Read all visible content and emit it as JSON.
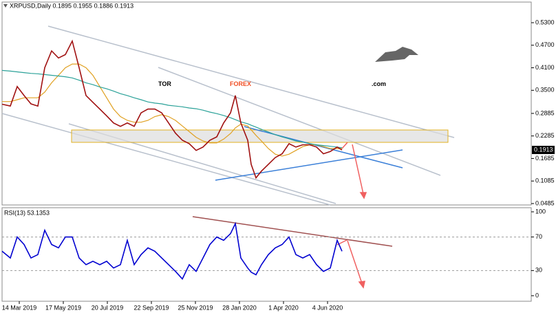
{
  "header": "XRPUSD,Daily  0.1895 0.1955 0.1886 0.1913",
  "logo": {
    "part1": "TOR",
    "part2": "FOREX",
    "part3": ".com"
  },
  "chart_data": [
    {
      "type": "line",
      "x": [
        "2019-02-17",
        "2019-03-01",
        "2019-03-11",
        "2019-03-21",
        "2019-03-31",
        "2019-04-10",
        "2019-04-20",
        "2019-04-30",
        "2019-05-10",
        "2019-05-20",
        "2019-05-30",
        "2019-06-09",
        "2019-06-19",
        "2019-06-29",
        "2019-07-09",
        "2019-07-19",
        "2019-07-29",
        "2019-08-08",
        "2019-08-18",
        "2019-08-28",
        "2019-09-07",
        "2019-09-17",
        "2019-09-27",
        "2019-10-07",
        "2019-10-17",
        "2019-10-27",
        "2019-11-06",
        "2019-11-16",
        "2019-11-26",
        "2019-12-06",
        "2019-12-16",
        "2019-12-26",
        "2020-01-05",
        "2020-01-15",
        "2020-01-22",
        "2020-01-30",
        "2020-02-09",
        "2020-02-14",
        "2020-02-21",
        "2020-02-29",
        "2020-03-10",
        "2020-03-20",
        "2020-03-30",
        "2020-04-09",
        "2020-04-19",
        "2020-04-29",
        "2020-05-09",
        "2020-05-19",
        "2020-05-29",
        "2020-06-08",
        "2020-06-18",
        "2020-06-25"
      ],
      "series": [
        {
          "color": "#a01010",
          "values": [
            0.313,
            0.308,
            0.36,
            0.336,
            0.314,
            0.308,
            0.41,
            0.455,
            0.436,
            0.445,
            0.481,
            0.41,
            0.336,
            0.318,
            0.3,
            0.282,
            0.263,
            0.254,
            0.263,
            0.254,
            0.29,
            0.3,
            0.3,
            0.29,
            0.263,
            0.236,
            0.217,
            0.208,
            0.19,
            0.199,
            0.217,
            0.226,
            0.263,
            0.29,
            0.336,
            0.263,
            0.217,
            0.153,
            0.117,
            0.135,
            0.153,
            0.171,
            0.181,
            0.208,
            0.199,
            0.205,
            0.205,
            0.199,
            0.181,
            0.187,
            0.199,
            0.191
          ]
        },
        {
          "color": "#2aa198",
          "values": [
            0.403,
            0.401,
            0.399,
            0.397,
            0.395,
            0.394,
            0.392,
            0.39,
            0.388,
            0.386,
            0.383,
            0.377,
            0.37,
            0.365,
            0.359,
            0.354,
            0.348,
            0.341,
            0.336,
            0.33,
            0.325,
            0.319,
            0.316,
            0.314,
            0.31,
            0.308,
            0.306,
            0.303,
            0.301,
            0.297,
            0.292,
            0.288,
            0.283,
            0.277,
            0.272,
            0.266,
            0.261,
            0.257,
            0.252,
            0.246,
            0.239,
            0.232,
            0.226,
            0.221,
            0.215,
            0.212,
            0.208,
            0.205,
            0.203,
            0.201,
            0.199,
            0.197
          ]
        },
        {
          "color": "#e0a020",
          "values": [
            0.32,
            0.32,
            0.325,
            0.33,
            0.33,
            0.33,
            0.345,
            0.37,
            0.39,
            0.41,
            0.42,
            0.42,
            0.41,
            0.39,
            0.36,
            0.33,
            0.3,
            0.28,
            0.27,
            0.265,
            0.265,
            0.27,
            0.28,
            0.285,
            0.28,
            0.27,
            0.255,
            0.24,
            0.225,
            0.215,
            0.21,
            0.21,
            0.22,
            0.235,
            0.25,
            0.26,
            0.255,
            0.245,
            0.23,
            0.215,
            0.195,
            0.18,
            0.175,
            0.18,
            0.19,
            0.2,
            0.205,
            0.205,
            0.2,
            0.195,
            0.195,
            0.195
          ]
        }
      ],
      "last_price": 0.1913,
      "xlim": [
        "2019-02-17",
        "2021-03-27"
      ],
      "ylim": [
        0.0448,
        0.5849
      ],
      "yticks": [
        {
          "value": 0.53,
          "label": "0.5300"
        },
        {
          "value": 0.47,
          "label": "0.4700"
        },
        {
          "value": 0.41,
          "label": "0.4100"
        },
        {
          "value": 0.35,
          "label": "0.3500"
        },
        0.2885,
        0.2285,
        0.1685,
        0.1085,
        0.0485
      ]
    },
    {
      "type": "line",
      "title": "RSI(13) 53.1353",
      "x": [
        "2019-02-17",
        "2019-03-01",
        "2019-03-11",
        "2019-03-21",
        "2019-03-31",
        "2019-04-10",
        "2019-04-20",
        "2019-04-30",
        "2019-05-10",
        "2019-05-20",
        "2019-05-30",
        "2019-06-09",
        "2019-06-19",
        "2019-06-29",
        "2019-07-09",
        "2019-07-19",
        "2019-07-29",
        "2019-08-08",
        "2019-08-18",
        "2019-08-28",
        "2019-09-07",
        "2019-09-17",
        "2019-09-27",
        "2019-10-07",
        "2019-10-17",
        "2019-10-27",
        "2019-11-06",
        "2019-11-16",
        "2019-11-26",
        "2019-12-06",
        "2019-12-16",
        "2019-12-26",
        "2020-01-05",
        "2020-01-15",
        "2020-01-22",
        "2020-01-30",
        "2020-02-09",
        "2020-02-14",
        "2020-02-21",
        "2020-02-29",
        "2020-03-10",
        "2020-03-20",
        "2020-03-30",
        "2020-04-09",
        "2020-04-19",
        "2020-04-29",
        "2020-05-09",
        "2020-05-19",
        "2020-05-29",
        "2020-06-08",
        "2020-06-18",
        "2020-06-25"
      ],
      "series": [
        {
          "color": "#0000d0",
          "values": [
            53,
            45,
            70,
            61,
            45,
            49,
            78,
            61,
            57,
            70,
            70,
            45,
            37,
            41,
            37,
            41,
            33,
            37,
            66,
            37,
            49,
            57,
            53,
            45,
            37,
            29,
            20,
            37,
            29,
            45,
            61,
            70,
            66,
            74,
            86,
            45,
            33,
            28,
            25,
            37,
            49,
            57,
            61,
            70,
            49,
            45,
            49,
            37,
            29,
            33,
            66,
            53
          ]
        }
      ],
      "xlim": [
        "2019-02-17",
        "2021-03-27"
      ],
      "ylim": [
        -6.6,
        104.9
      ],
      "yticks": [
        100,
        70,
        30,
        0
      ],
      "levels": [
        70,
        30
      ],
      "xticks": [
        {
          "value": "2019-03-14",
          "label": "14 Mar 2019"
        },
        {
          "value": "2019-05-17",
          "label": "17 May 2019"
        },
        {
          "value": "2019-07-20",
          "label": "20 Jul 2019"
        },
        {
          "value": "2019-09-22",
          "label": "22 Sep 2019"
        },
        {
          "value": "2019-11-25",
          "label": "25 Nov 2019"
        },
        {
          "value": "2020-01-28",
          "label": "28 Jan 2020"
        },
        {
          "value": "2020-04-01",
          "label": "1 Apr 2020"
        },
        {
          "value": "2020-06-04",
          "label": "4 Jun 2020"
        }
      ]
    }
  ]
}
